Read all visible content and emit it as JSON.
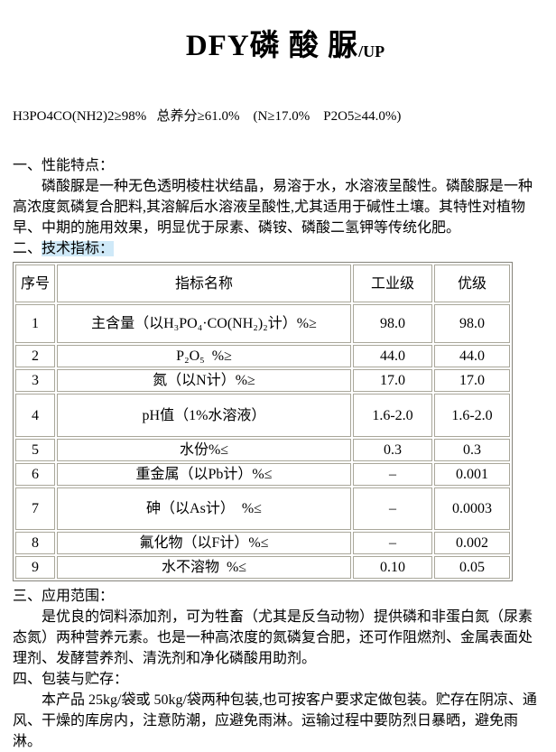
{
  "header": {
    "title_main": "DFY磷 酸 脲",
    "title_suffix": "/UP",
    "formula_line": "H3PO4CO(NH2)2≥98%   总养分≥61.0%    (N≥17.0%    P2O5≥44.0%)"
  },
  "section_1": {
    "heading": "一、性能特点：",
    "body": "磷酸脲是一种无色透明棱柱状结晶，易溶于水，水溶液呈酸性。磷酸脲是一种高浓度氮磷复合肥料,其溶解后水溶液呈酸性,尤其适用于碱性土壤。其特性对植物早、中期的施用效果，明显优于尿素、磷铵、磷酸二氢钾等传统化肥。"
  },
  "section_2": {
    "heading_prefix": "二、",
    "heading_highlight": "技术指标：",
    "table": {
      "headers": [
        "序号",
        "指标名称",
        "工业级",
        "优级"
      ],
      "rows": [
        {
          "no": "1",
          "name": "主含量（以H₃PO₄·CO(NH₂)₂计）%≥",
          "industrial": "98.0",
          "premium": "98.0"
        },
        {
          "no": "2",
          "name": "P₂O₅  %≥",
          "industrial": "44.0",
          "premium": "44.0"
        },
        {
          "no": "3",
          "name": "氮（以N计）%≥",
          "industrial": "17.0",
          "premium": "17.0"
        },
        {
          "no": "4",
          "name": "pH值（1%水溶液）",
          "industrial": "1.6-2.0",
          "premium": "1.6-2.0"
        },
        {
          "no": "5",
          "name": "水份%≤",
          "industrial": "0.3",
          "premium": "0.3"
        },
        {
          "no": "6",
          "name": "重金属（以Pb计）%≤",
          "industrial": "–",
          "premium": "0.001"
        },
        {
          "no": "7",
          "name": "砷（以As计）  %≤",
          "industrial": "–",
          "premium": "0.0003"
        },
        {
          "no": "8",
          "name": "氟化物（以F计）%≤",
          "industrial": "–",
          "premium": "0.002"
        },
        {
          "no": "9",
          "name": "水不溶物  %≤",
          "industrial": "0.10",
          "premium": "0.05"
        }
      ]
    }
  },
  "section_3": {
    "heading": "三、应用范围：",
    "body": "是优良的饲料添加剂，可为牲畜（尤其是反刍动物）提供磷和非蛋白氮（尿素态氮）两种营养元素。也是一种高浓度的氮磷复合肥，还可作阻燃剂、金属表面处理剂、发酵营养剂、清洗剂和净化磷酸用助剂。"
  },
  "section_4": {
    "heading": "四、包装与贮存：",
    "body": "本产品 25kg/袋或 50kg/袋两种包装,也可按客户要求定做包装。贮存在阴凉、通风、干燥的库房内，注意防潮，应避免雨淋。运输过程中要防烈日暴晒，避免雨淋。"
  },
  "colors": {
    "highlight": "#cfe9f8",
    "table_border_outer": "#85837a",
    "table_border_inner": "#a9a79a",
    "text": "#000000",
    "background": "#ffffff"
  }
}
